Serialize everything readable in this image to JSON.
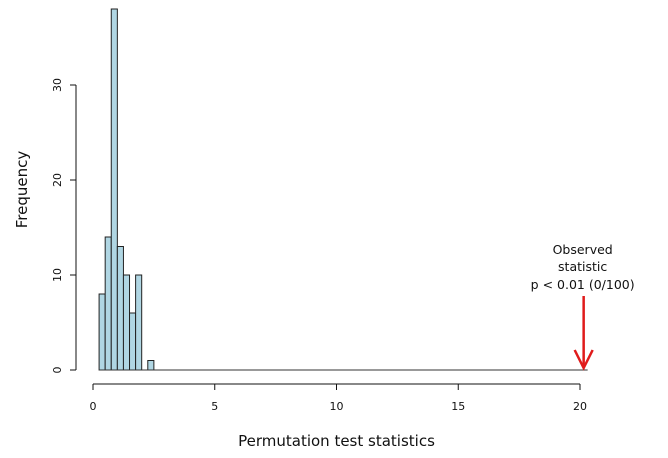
{
  "chart_data": {
    "type": "bar",
    "title": "",
    "xlabel": "Permutation test statistics",
    "ylabel": "Frequency",
    "xlim": [
      0,
      22.5
    ],
    "ylim": [
      0,
      38
    ],
    "xticks": [
      0,
      5,
      10,
      15,
      20
    ],
    "yticks": [
      0,
      10,
      20,
      30
    ],
    "bin_width": 0.25,
    "bins": [
      {
        "x0": 0.25,
        "x1": 0.5,
        "count": 8
      },
      {
        "x0": 0.5,
        "x1": 0.75,
        "count": 14
      },
      {
        "x0": 0.75,
        "x1": 1.0,
        "count": 38
      },
      {
        "x0": 1.0,
        "x1": 1.25,
        "count": 13
      },
      {
        "x0": 1.25,
        "x1": 1.5,
        "count": 10
      },
      {
        "x0": 1.5,
        "x1": 1.75,
        "count": 6
      },
      {
        "x0": 1.75,
        "x1": 2.0,
        "count": 10
      },
      {
        "x0": 2.0,
        "x1": 2.25,
        "count": 0
      },
      {
        "x0": 2.25,
        "x1": 2.5,
        "count": 1
      }
    ],
    "observed": {
      "value": 20.15,
      "label_lines": [
        "Observed",
        "statistic",
        "p < 0.01 (0/100)"
      ],
      "color": "#e01b1b"
    },
    "bar_color": "#b0d6e3",
    "grid": false
  }
}
